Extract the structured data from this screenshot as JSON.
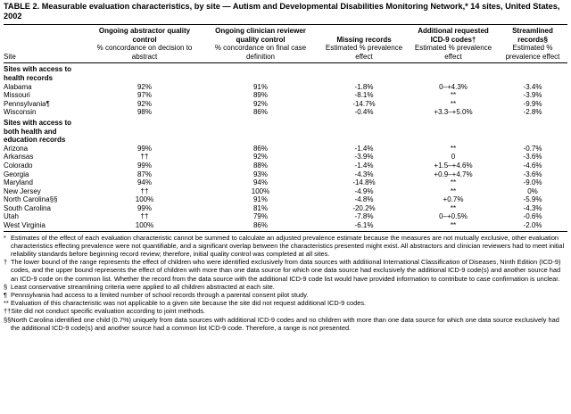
{
  "title": "TABLE 2. Measurable evaluation characteristics, by site — Autism and Developmental Disabilities Monitoring Network,* 14 sites, United States, 2002",
  "table": {
    "header_groups": [
      "Ongoing abstractor quality control",
      "Ongoing clinician reviewer quality control",
      "Missing records",
      "Additional requested ICD-9 codes†",
      "Streamlined records§"
    ],
    "header": [
      "Site",
      "% concordance on decision to abstract",
      "% concordance on final case definition",
      "Estimated % prevalence effect",
      "Estimated % prevalence effect",
      "Estimated % prevalence effect"
    ],
    "sections": [
      {
        "label": "Sites with access to health records",
        "rows": [
          [
            "Alabama",
            "92%",
            "91%",
            "-1.8%",
            "0–+4.3%",
            "-3.4%"
          ],
          [
            "Missouri",
            "97%",
            "89%",
            "-8.1%",
            "**",
            "-3.9%"
          ],
          [
            "Pennsylvania¶",
            "92%",
            "92%",
            "-14.7%",
            "**",
            "-9.9%"
          ],
          [
            "Wisconsin",
            "98%",
            "86%",
            "-0.4%",
            "+3.3–+5.0%",
            "-2.8%"
          ]
        ]
      },
      {
        "label": "Sites with access to both health and education records",
        "rows": [
          [
            "Arizona",
            "99%",
            "86%",
            "-1.4%",
            "**",
            "-0.7%"
          ],
          [
            "Arkansas",
            "††",
            "92%",
            "-3.9%",
            "0",
            "-3.6%"
          ],
          [
            "Colorado",
            "99%",
            "88%",
            "-1.4%",
            "+1.5–+4.6%",
            "-4.6%"
          ],
          [
            "Georgia",
            "87%",
            "93%",
            "-4.3%",
            "+0.9–+4.7%",
            "-3.6%"
          ],
          [
            "Maryland",
            "94%",
            "94%",
            "-14.8%",
            "**",
            "-9.0%"
          ],
          [
            "New Jersey",
            "††",
            "100%",
            "-4.9%",
            "**",
            "0%"
          ],
          [
            "North Carolina§§",
            "100%",
            "91%",
            "-4.8%",
            "+0.7%",
            "-5.9%"
          ],
          [
            "South Carolina",
            "99%",
            "81%",
            "-20.2%",
            "**",
            "-4.3%"
          ],
          [
            "Utah",
            "††",
            "79%",
            "-7.8%",
            "0–+0.5%",
            "-0.6%"
          ],
          [
            "West Virginia",
            "100%",
            "86%",
            "-6.1%",
            "**",
            "-2.0%"
          ]
        ]
      }
    ]
  },
  "footnotes": [
    {
      "mark": "*",
      "text": "Estimates of the effect of each evaluation characteristic cannot be summed to calculate an adjusted prevalence estimate because the measures are not mutually exclusive, other evaluation characteristics effecting prevalence were not quantifiable, and a significant overlap between the characteristics presented might exist. All abstractors and clinician reviewers had to meet initial reliability standards before beginning record review; therefore, initial quality control was completed at all sites."
    },
    {
      "mark": "†",
      "text": "The lower bound of the range represents the effect of children who were identified exclusively from data sources with additional International Classification of Diseases, Ninth Edition (ICD-9) codes, and the upper bound represents the effect of children with more than one data source for which one data source had exclusively the additional ICD-9 code(s) and another source had an ICD-9 code on the common list. Whether the record from the data source with the additional ICD-9 code list would have provided information to contribute to case confirmation is unclear."
    },
    {
      "mark": "§",
      "text": "Least conservative streamlining criteria were applied to all children abstracted at each site."
    },
    {
      "mark": "¶",
      "text": "Pennsylvania had access to a limited number of school records through a parental consent pilot study."
    },
    {
      "mark": "**",
      "text": "Evaluation of this characteristic was not applicable to a given site because the site did not request additional ICD-9 codes."
    },
    {
      "mark": "††",
      "text": "Site did not conduct specific evaluation according to joint methods."
    },
    {
      "mark": "§§",
      "text": "North Carolina identified one child (0.7%) uniquely from data sources with additional ICD-9 codes and no children with more than one data source for which one data source exclusively had the additional ICD-9 code(s) and another source had a common list ICD-9 code. Therefore, a range is not presented."
    }
  ]
}
